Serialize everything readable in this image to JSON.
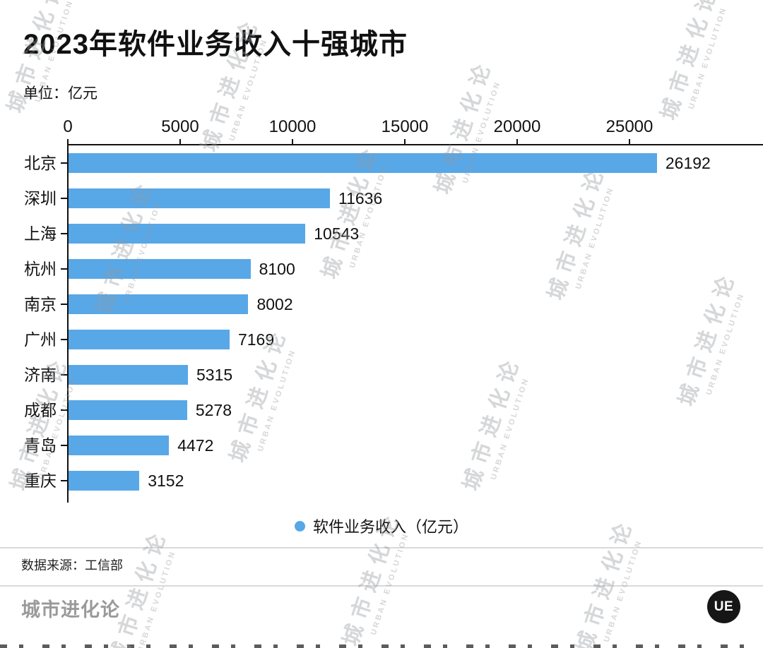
{
  "header": {
    "title": "2023年软件业务收入十强城市",
    "unit": "单位：亿元"
  },
  "chart_data": {
    "type": "bar",
    "orientation": "horizontal",
    "title": "2023年软件业务收入十强城市",
    "unit": "亿元",
    "categories": [
      "北京",
      "深圳",
      "上海",
      "杭州",
      "南京",
      "广州",
      "济南",
      "成都",
      "青岛",
      "重庆"
    ],
    "values": [
      26192,
      11636,
      10543,
      8100,
      8002,
      7169,
      5315,
      5278,
      4472,
      3152
    ],
    "series_name": "软件业务收入（亿元）",
    "x_ticks": [
      0,
      5000,
      10000,
      15000,
      20000,
      25000
    ],
    "xlim": [
      0,
      27500
    ],
    "bar_color": "#58A7E7",
    "grid": false,
    "legend_position": "bottom",
    "axis_position": "top"
  },
  "legend": {
    "label": "软件业务收入（亿元）"
  },
  "source": {
    "text": "数据来源：工信部"
  },
  "footer": {
    "brand": "城市进化论",
    "logo_text": "UE"
  },
  "watermark": {
    "cn": "城市进化论",
    "en": "URBAN EVOLUTION"
  },
  "colors": {
    "bar": "#58A7E7",
    "axis": "#111111",
    "divider": "#d9d9d9",
    "brand_gray": "#9a9a9a"
  }
}
